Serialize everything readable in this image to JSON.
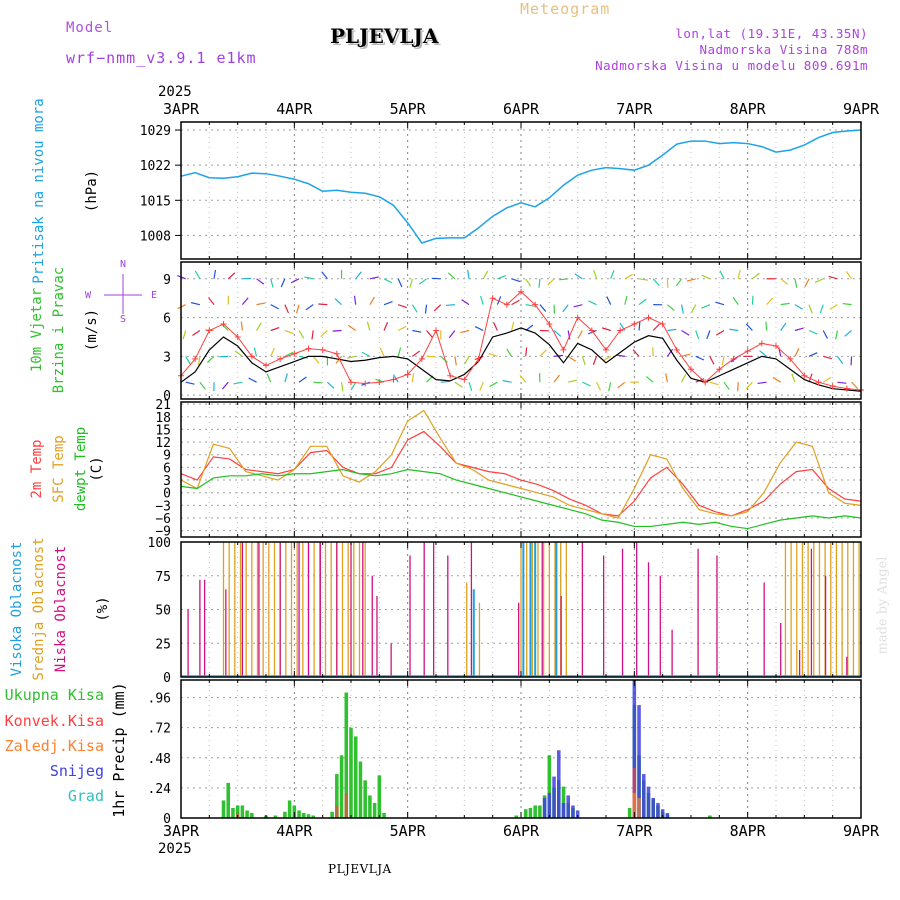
{
  "header": {
    "model_label": "Model",
    "model_name": "wrf−nmm_v3.9.1 e1km",
    "title": "PLJEVLJA",
    "meteogram": "Meteogram",
    "lonlat": "lon,lat (19.31E, 43.35N)",
    "altitude": "Nadmorska Visina 788m",
    "model_altitude": "Nadmorska Visina u modelu 809.691m",
    "year_top": "2025",
    "year_bottom": "2025",
    "footer": "PLJEVLJA",
    "credit": "made by Angel"
  },
  "colors": {
    "pressure": "#1ca3e8",
    "wind_speed": "#000000",
    "gust": "#ff4040",
    "t2m": "#ff4040",
    "sfc": "#e0a020",
    "dewpoint": "#20c020",
    "high_cloud": "#20a0e0",
    "mid_cloud": "#e0a020",
    "low_cloud": "#d01080",
    "rain_total": "#30c030",
    "rain_conv": "#ff4040",
    "rain_frozen": "#ff8030",
    "snow": "#4040e0",
    "graupel": "#30c0c0",
    "grid": "#999999"
  },
  "chart_data": [
    {
      "type": "line",
      "name": "pressure",
      "x_ticks": [
        "3APR",
        "4APR",
        "5APR",
        "6APR",
        "7APR",
        "8APR",
        "9APR"
      ],
      "ylabel": "Pritisak na nivou mora",
      "unit": "(hPa)",
      "ylim": [
        1003.3,
        1030.6
      ],
      "yticks": [
        1008,
        1015,
        1022,
        1029
      ],
      "x_hours": [
        0,
        3,
        6,
        9,
        12,
        15,
        18,
        21,
        24,
        27,
        30,
        33,
        36,
        39,
        42,
        45,
        48,
        51,
        54,
        57,
        60,
        63,
        66,
        69,
        72,
        75,
        78,
        81,
        84,
        87,
        90,
        93,
        96,
        99,
        102,
        105,
        108,
        111,
        114,
        117,
        120,
        123,
        126,
        129,
        132,
        135,
        138,
        141,
        144
      ],
      "values": [
        1019.8,
        1020.5,
        1019.5,
        1019.4,
        1019.7,
        1020.4,
        1020.3,
        1019.8,
        1019.2,
        1018.3,
        1016.8,
        1017.0,
        1016.6,
        1016.4,
        1015.7,
        1014.0,
        1010.5,
        1006.5,
        1007.4,
        1007.5,
        1007.5,
        1009.5,
        1011.8,
        1013.5,
        1014.5,
        1013.7,
        1015.5,
        1018.0,
        1020.0,
        1021.0,
        1021.5,
        1021.3,
        1021.0,
        1022.0,
        1024.0,
        1026.2,
        1026.8,
        1026.8,
        1026.3,
        1026.5,
        1026.3,
        1025.7,
        1024.6,
        1025.0,
        1026.0,
        1027.5,
        1028.5,
        1028.8,
        1029.0
      ]
    },
    {
      "type": "line",
      "name": "wind",
      "ylabel": "10m Vjetar Brzina i Pravac",
      "unit": "(m/s)",
      "compass": [
        "N",
        "W",
        "E",
        "S"
      ],
      "ylim": [
        -0.3,
        10.3
      ],
      "yticks": [
        0,
        3,
        6,
        9
      ],
      "x_hours": [
        0,
        3,
        6,
        9,
        12,
        15,
        18,
        21,
        24,
        27,
        30,
        33,
        36,
        39,
        42,
        45,
        48,
        51,
        54,
        57,
        60,
        63,
        66,
        69,
        72,
        75,
        78,
        81,
        84,
        87,
        90,
        93,
        96,
        99,
        102,
        105,
        108,
        111,
        114,
        117,
        120,
        123,
        126,
        129,
        132,
        135,
        138,
        141,
        144
      ],
      "series": [
        {
          "name": "speed",
          "values": [
            1.0,
            1.8,
            3.5,
            4.5,
            3.8,
            2.5,
            1.8,
            2.2,
            2.6,
            3.0,
            3.0,
            2.8,
            2.6,
            2.7,
            2.9,
            3.0,
            2.8,
            2.0,
            1.2,
            1.1,
            1.6,
            2.6,
            4.5,
            4.8,
            5.2,
            4.8,
            3.9,
            2.5,
            4.0,
            3.5,
            2.5,
            3.3,
            4.1,
            4.6,
            4.4,
            2.7,
            1.3,
            1.0,
            1.5,
            2.0,
            2.5,
            3.0,
            2.8,
            2.0,
            1.2,
            0.8,
            0.5,
            0.4,
            0.3
          ]
        },
        {
          "name": "gust",
          "values": [
            1.5,
            2.8,
            5.0,
            5.5,
            4.5,
            3.0,
            2.3,
            2.8,
            3.2,
            3.6,
            3.5,
            3.2,
            1.0,
            0.9,
            1.0,
            1.2,
            1.6,
            2.8,
            5.0,
            1.5,
            1.2,
            2.8,
            7.5,
            7.0,
            8.0,
            7.0,
            5.5,
            3.5,
            6.0,
            5.0,
            3.5,
            5.0,
            5.5,
            6.0,
            5.5,
            3.5,
            2.0,
            1.0,
            2.0,
            2.8,
            3.4,
            4.0,
            3.8,
            2.8,
            1.5,
            1.0,
            0.7,
            0.5,
            0.4
          ]
        }
      ]
    },
    {
      "type": "line",
      "name": "temperature",
      "ylabels": [
        "2m Temp",
        "SFC Temp",
        "dewpt Temp"
      ],
      "unit": "(C)",
      "ylim": [
        -10.5,
        21.5
      ],
      "yticks": [
        -9,
        -6,
        -3,
        0,
        3,
        6,
        9,
        12,
        15,
        18,
        21
      ],
      "x_hours": [
        0,
        3,
        6,
        9,
        12,
        15,
        18,
        21,
        24,
        27,
        30,
        33,
        36,
        39,
        42,
        45,
        48,
        51,
        54,
        57,
        60,
        63,
        66,
        69,
        72,
        75,
        78,
        81,
        84,
        87,
        90,
        93,
        96,
        99,
        102,
        105,
        108,
        111,
        114,
        117,
        120,
        123,
        126,
        129,
        132,
        135,
        138,
        141,
        144
      ],
      "series": [
        {
          "name": "2m Temp",
          "values": [
            4.5,
            3.0,
            8.5,
            8.0,
            5.5,
            5.0,
            4.5,
            5.5,
            9.5,
            10.0,
            6.0,
            4.5,
            4.5,
            6.0,
            12.5,
            14.5,
            11.0,
            7.0,
            6.0,
            5.0,
            4.5,
            3.0,
            2.0,
            0.5,
            -1.5,
            -3.0,
            -5.0,
            -5.5,
            -2.0,
            3.5,
            6.0,
            2.0,
            -3.0,
            -4.5,
            -5.5,
            -4.0,
            -2.0,
            2.0,
            5.0,
            5.5,
            1.0,
            -1.5,
            -2.0
          ]
        },
        {
          "name": "SFC Temp",
          "values": [
            3.0,
            1.0,
            11.5,
            10.5,
            5.0,
            4.0,
            3.0,
            5.5,
            11.0,
            11.0,
            4.0,
            2.5,
            5.0,
            9.0,
            17.0,
            19.5,
            13.0,
            7.0,
            5.5,
            3.0,
            2.0,
            1.0,
            0.0,
            -1.0,
            -3.0,
            -4.0,
            -5.0,
            -6.0,
            1.0,
            9.0,
            8.0,
            1.0,
            -4.0,
            -5.0,
            -5.5,
            -4.5,
            0.0,
            7.0,
            12.0,
            11.0,
            0.0,
            -2.5,
            -3.0
          ]
        },
        {
          "name": "dewpt Temp",
          "values": [
            1.5,
            1.0,
            3.5,
            4.0,
            4.0,
            4.5,
            4.0,
            4.5,
            4.5,
            5.0,
            5.5,
            4.5,
            4.0,
            4.5,
            5.5,
            5.0,
            4.5,
            3.0,
            2.0,
            1.0,
            0.0,
            -1.0,
            -2.0,
            -3.0,
            -4.0,
            -5.0,
            -6.5,
            -7.0,
            -8.0,
            -8.0,
            -7.5,
            -7.0,
            -7.5,
            -7.0,
            -8.0,
            -8.5,
            -7.5,
            -6.5,
            -6.0,
            -5.5,
            -6.0,
            -5.5,
            -6.0
          ]
        }
      ],
      "x_hours_note": "values spaced evenly across the full 144h span"
    },
    {
      "type": "bar",
      "name": "clouds",
      "ylabels": [
        "Visoka Oblacnost",
        "Srednja Oblacnost",
        "Niska Oblacnost"
      ],
      "unit": "(%)",
      "ylim": [
        0,
        100
      ],
      "yticks": [
        0,
        25,
        50,
        75,
        100
      ],
      "low_bars": [
        [
          1.5,
          50
        ],
        [
          4,
          72
        ],
        [
          5,
          72
        ],
        [
          9.5,
          65
        ],
        [
          13,
          100
        ],
        [
          16.5,
          100
        ],
        [
          21,
          100
        ],
        [
          25,
          100
        ],
        [
          27,
          100
        ],
        [
          29.5,
          100
        ],
        [
          33,
          100
        ],
        [
          36,
          100
        ],
        [
          38.5,
          100
        ],
        [
          40.5,
          75
        ],
        [
          41.5,
          60
        ],
        [
          44.5,
          25
        ],
        [
          48.5,
          90
        ],
        [
          51.5,
          100
        ],
        [
          53.5,
          100
        ],
        [
          56.5,
          90
        ],
        [
          61.5,
          100
        ],
        [
          71.5,
          55
        ],
        [
          74,
          65
        ],
        [
          76.5,
          100
        ],
        [
          80.5,
          60
        ],
        [
          85,
          100
        ],
        [
          89.5,
          90
        ],
        [
          93.5,
          95
        ],
        [
          96.5,
          100
        ],
        [
          99,
          85
        ],
        [
          101.5,
          75
        ],
        [
          104,
          35
        ],
        [
          109.5,
          95
        ],
        [
          113.5,
          90
        ],
        [
          123.5,
          70
        ],
        [
          127,
          40
        ],
        [
          131,
          20
        ],
        [
          133.5,
          95
        ],
        [
          136.5,
          75
        ],
        [
          141,
          15
        ]
      ],
      "mid_bars_range": [
        [
          9,
          39.5,
          100
        ],
        [
          60.5,
          61,
          70
        ],
        [
          62,
          63.5,
          55
        ],
        [
          72,
          82,
          100
        ],
        [
          128,
          144,
          100
        ]
      ],
      "high_bars": [
        [
          62,
          65
        ],
        [
          72.5,
          100
        ],
        [
          74,
          100
        ],
        [
          75,
          100
        ],
        [
          79.5,
          100
        ]
      ]
    },
    {
      "type": "bar",
      "name": "precipitation",
      "ylabels": [
        "Ukupna Kisa",
        "Konvek.Kisa",
        "Zaledj.Kisa",
        "Snijeg",
        "Grad"
      ],
      "ylabel": "1hr Precip (mm)",
      "ylim": [
        0,
        1.1
      ],
      "yticks": [
        0,
        0.24,
        0.48,
        0.72,
        0.96
      ],
      "total": [
        [
          9,
          0.14
        ],
        [
          10,
          0.28
        ],
        [
          11,
          0.08
        ],
        [
          12,
          0.1
        ],
        [
          13,
          0.1
        ],
        [
          14,
          0.06
        ],
        [
          15,
          0.04
        ],
        [
          18,
          0.02
        ],
        [
          20,
          0.02
        ],
        [
          22,
          0.05
        ],
        [
          23,
          0.14
        ],
        [
          24,
          0.1
        ],
        [
          25,
          0.06
        ],
        [
          26,
          0.04
        ],
        [
          27,
          0.03
        ],
        [
          28,
          0.02
        ],
        [
          32,
          0.05
        ],
        [
          33,
          0.35
        ],
        [
          34,
          0.5
        ],
        [
          35,
          1.0
        ],
        [
          36,
          0.72
        ],
        [
          37,
          0.65
        ],
        [
          38,
          0.45
        ],
        [
          39,
          0.3
        ],
        [
          40,
          0.18
        ],
        [
          41,
          0.12
        ],
        [
          42,
          0.34
        ],
        [
          43,
          0.04
        ],
        [
          71,
          0.02
        ],
        [
          73,
          0.07
        ],
        [
          74,
          0.08
        ],
        [
          75,
          0.1
        ],
        [
          76,
          0.1
        ],
        [
          77,
          0.18
        ],
        [
          78,
          0.5
        ],
        [
          79,
          0.24
        ],
        [
          80,
          0.3
        ],
        [
          81,
          0.25
        ],
        [
          82,
          0.12
        ],
        [
          83,
          0.08
        ],
        [
          95,
          0.08
        ],
        [
          96,
          0.9
        ],
        [
          97,
          0.5
        ],
        [
          98,
          0.3
        ],
        [
          99,
          0.2
        ],
        [
          100,
          0.15
        ],
        [
          101,
          0.1
        ],
        [
          102,
          0.05
        ],
        [
          103,
          0.03
        ],
        [
          112,
          0.02
        ]
      ],
      "snow": [
        [
          77,
          0.16
        ],
        [
          78,
          0.2
        ],
        [
          79,
          0.33
        ],
        [
          80,
          0.54
        ],
        [
          81,
          0.12
        ],
        [
          82,
          0.18
        ],
        [
          83,
          0.1
        ],
        [
          84,
          0.06
        ],
        [
          96,
          1.1
        ],
        [
          97,
          0.9
        ],
        [
          98,
          0.35
        ],
        [
          99,
          0.25
        ],
        [
          100,
          0.16
        ],
        [
          101,
          0.12
        ],
        [
          102,
          0.07
        ],
        [
          103,
          0.04
        ]
      ],
      "convective": [
        [
          12,
          0.04
        ],
        [
          33,
          0.1
        ],
        [
          35,
          0.2
        ],
        [
          96,
          0.4
        ]
      ],
      "frozen": [
        [
          96,
          0.2
        ],
        [
          97,
          0.16
        ]
      ]
    }
  ]
}
